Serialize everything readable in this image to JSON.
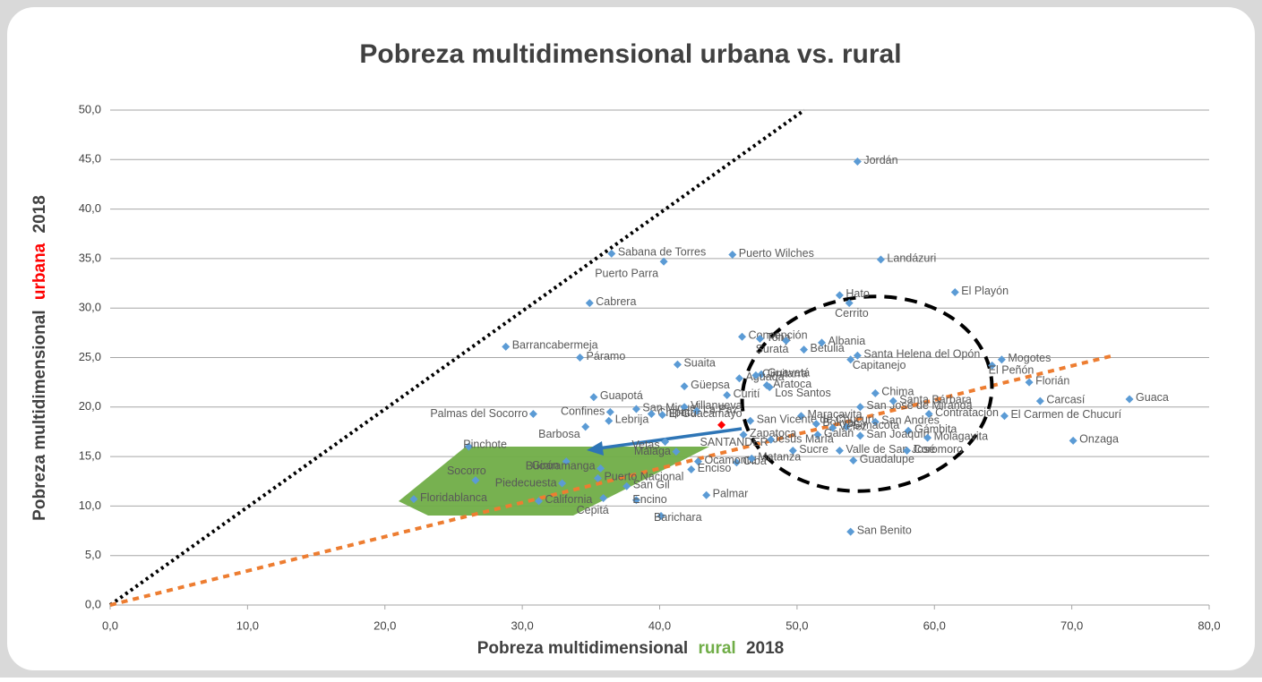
{
  "chart_data": {
    "type": "scatter",
    "title": "Pobreza multidimensional urbana vs. rural",
    "x_label": [
      "Pobreza multidimensional",
      "rural",
      "2018"
    ],
    "y_label": [
      "Pobreza multidimensional",
      "urbana",
      "2018"
    ],
    "x_label_colors": [
      "#404040",
      "#70ad47",
      "#404040"
    ],
    "y_label_colors": [
      "#404040",
      "#ff0000",
      "#404040"
    ],
    "xlim": [
      0,
      80
    ],
    "ylim": [
      0,
      50
    ],
    "xticks": [
      {
        "value": 0,
        "label": "0,0"
      },
      {
        "value": 10,
        "label": "10,0"
      },
      {
        "value": 20,
        "label": "20,0"
      },
      {
        "value": 30,
        "label": "30,0"
      },
      {
        "value": 40,
        "label": "40,0"
      },
      {
        "value": 50,
        "label": "50,0"
      },
      {
        "value": 60,
        "label": "60,0"
      },
      {
        "value": 70,
        "label": "70,0"
      },
      {
        "value": 80,
        "label": "80,0"
      }
    ],
    "yticks": [
      {
        "value": 0,
        "label": "0,0"
      },
      {
        "value": 5,
        "label": "5,0"
      },
      {
        "value": 10,
        "label": "10,0"
      },
      {
        "value": 15,
        "label": "15,0"
      },
      {
        "value": 20,
        "label": "20,0"
      },
      {
        "value": 25,
        "label": "25,0"
      },
      {
        "value": 30,
        "label": "30,0"
      },
      {
        "value": 35,
        "label": "35,0"
      },
      {
        "value": 40,
        "label": "40,0"
      },
      {
        "value": 45,
        "label": "45,0"
      },
      {
        "value": 50,
        "label": "50,0"
      }
    ],
    "grid": true,
    "series": [
      {
        "color": "#5b9bd5",
        "labels": [
          "Jordán",
          "Sabana de Torres",
          "Puerto Wilches",
          "Puerto Parra",
          "Landázuri",
          "Hato",
          "Cerrito",
          "El Playón",
          "Cabrera",
          "Concepción",
          "Tona",
          "Suratá",
          "Betulia",
          "Albania",
          "Barrancabermeja",
          "Páramo",
          "Santa Helena del Opón",
          "Capitanejo",
          "Mogotes",
          "El Peñón",
          "Suaita",
          "Guavatá",
          "Aguada",
          "Cimitarra",
          "Aratoca",
          "Florián",
          "Los Santos",
          "Güepsa",
          "Curití",
          "Guapotá",
          "Chima",
          "San José de Miranda",
          "Santa Bárbara",
          "Guaca",
          "Carcasí",
          "El Carmen de Chucurí",
          "Palmas del Socorro",
          "Confines",
          "San Miguel",
          "Villanueva",
          "Chipatá",
          "La Paz",
          "El Guacamayo",
          "Lebrija",
          "Barbosa",
          "Contratación",
          "Maracavita",
          "San Vicente de Chucurí",
          "Bolívar",
          "San Andrés",
          "Simacota",
          "Vélez",
          "Gámbita",
          "Galán",
          "San Joaquín",
          "Molagavita",
          "Onzaga",
          "Zapatoca",
          "Jesús María",
          "Vetas",
          "Málaga",
          "Valle de San José",
          "Coromoro",
          "Guadalupe",
          "Pinchote",
          "Girón",
          "Oiba",
          "Sucre",
          "Ocamonte",
          "Matanza",
          "Socorro",
          "Piedecuesta",
          "Bucaramanga",
          "Enciso",
          "Puerto Nacional",
          "San Gil",
          "Floridablanca",
          "California",
          "Cepitá",
          "Encino",
          "Palmar",
          "Barichara",
          "San Benito"
        ],
        "x": [
          54.4,
          36.5,
          45.3,
          40.3,
          56.1,
          53.1,
          53.8,
          61.5,
          34.9,
          46.0,
          47.3,
          49.2,
          50.5,
          51.8,
          28.8,
          34.2,
          54.4,
          53.9,
          64.9,
          64.2,
          41.3,
          47.4,
          45.8,
          47.0,
          47.8,
          66.9,
          48.0,
          41.8,
          44.9,
          35.2,
          55.7,
          54.6,
          57.0,
          74.2,
          67.7,
          65.1,
          30.8,
          36.4,
          38.3,
          41.8,
          39.4,
          42.7,
          40.2,
          36.3,
          34.6,
          59.6,
          50.3,
          46.6,
          51.4,
          55.7,
          53.6,
          52.6,
          58.1,
          51.5,
          54.6,
          59.5,
          70.1,
          46.1,
          48.1,
          40.4,
          41.2,
          53.1,
          58.0,
          54.1,
          26.1,
          33.2,
          45.6,
          49.7,
          42.8,
          46.7,
          26.6,
          32.9,
          35.7,
          42.3,
          35.5,
          37.6,
          22.1,
          31.2,
          35.9,
          38.3,
          43.4,
          40.1,
          53.9
        ],
        "values": [
          44.8,
          35.5,
          35.4,
          34.7,
          34.9,
          31.3,
          30.5,
          31.6,
          30.5,
          27.1,
          26.9,
          26.7,
          25.8,
          26.5,
          26.1,
          25.0,
          25.2,
          24.8,
          24.8,
          24.2,
          24.3,
          23.3,
          22.9,
          23.2,
          22.2,
          22.5,
          22.0,
          22.1,
          21.2,
          21.0,
          21.4,
          20.0,
          20.6,
          20.8,
          20.6,
          19.1,
          19.3,
          19.5,
          19.8,
          20.0,
          19.3,
          19.6,
          19.2,
          18.6,
          18.0,
          19.3,
          19.1,
          18.6,
          18.3,
          18.5,
          18.0,
          17.9,
          17.6,
          17.2,
          17.1,
          16.9,
          16.6,
          17.2,
          16.7,
          16.5,
          15.5,
          15.6,
          15.6,
          14.6,
          16.0,
          14.5,
          14.4,
          15.6,
          14.5,
          14.8,
          12.6,
          12.3,
          13.8,
          13.7,
          12.8,
          12.0,
          10.7,
          10.5,
          10.8,
          10.6,
          11.1,
          9.0,
          7.4
        ]
      },
      {
        "color": "#ff0000",
        "labels": [
          "SANTANDER"
        ],
        "x": [
          44.5
        ],
        "values": [
          18.2
        ]
      }
    ]
  }
}
